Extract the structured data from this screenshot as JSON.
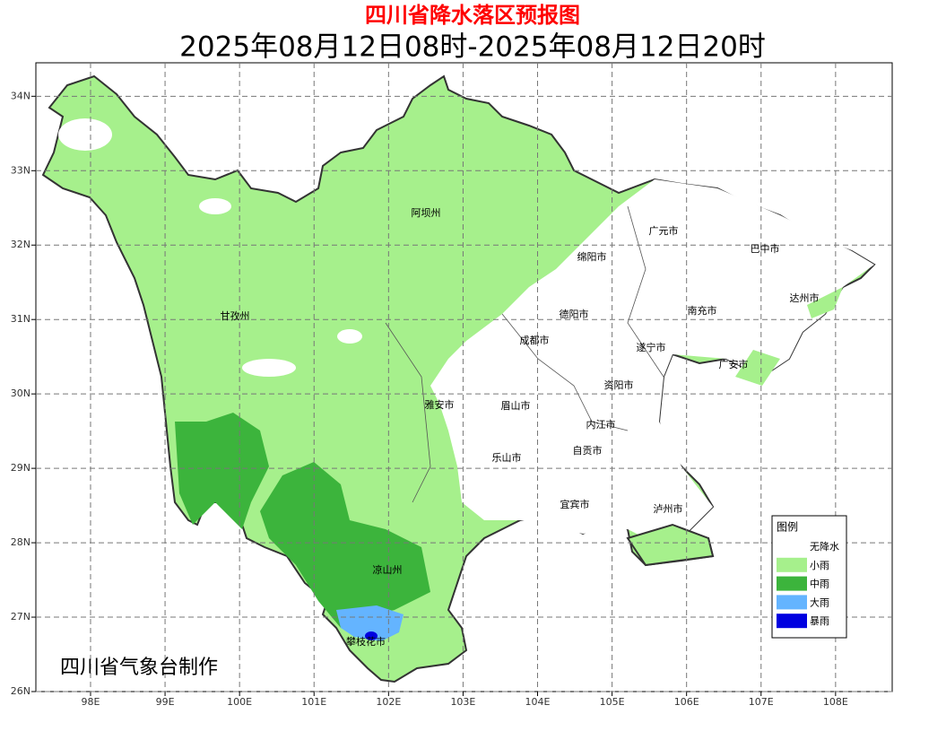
{
  "header": {
    "title": "四川省降水落区预报图",
    "subtitle": "2025年08月12日08时-2025年08月12日20时"
  },
  "map": {
    "xlim": [
      97.266,
      108.76
    ],
    "ylim": [
      26,
      34.45
    ],
    "xticks": [
      {
        "value": 98,
        "label": "98E"
      },
      {
        "value": 99,
        "label": "99E"
      },
      {
        "value": 100,
        "label": "100E"
      },
      {
        "value": 101,
        "label": "101E"
      },
      {
        "value": 102,
        "label": "102E"
      },
      {
        "value": 103,
        "label": "103E"
      },
      {
        "value": 104,
        "label": "104E"
      },
      {
        "value": 105,
        "label": "105E"
      },
      {
        "value": 106,
        "label": "106E"
      },
      {
        "value": 107,
        "label": "107E"
      },
      {
        "value": 108,
        "label": "108E"
      }
    ],
    "yticks": [
      {
        "value": 26,
        "label": "26N"
      },
      {
        "value": 27,
        "label": "27N"
      },
      {
        "value": 28,
        "label": "28N"
      },
      {
        "value": 29,
        "label": "29N"
      },
      {
        "value": 30,
        "label": "30N"
      },
      {
        "value": 31,
        "label": "31N"
      },
      {
        "value": 32,
        "label": "32N"
      },
      {
        "value": 33,
        "label": "33N"
      },
      {
        "value": 34,
        "label": "34N"
      }
    ],
    "grid": true,
    "regions": [
      "阿坝州",
      "甘孜州",
      "广元市",
      "巴中市",
      "绵阳市",
      "达州市",
      "德阳市",
      "南充市",
      "成都市",
      "遂宁市",
      "广安市",
      "资阳市",
      "雅安市",
      "眉山市",
      "内江市",
      "自贡市",
      "乐山市",
      "宜宾市",
      "泸州市",
      "凉山州",
      "攀枝花市"
    ]
  },
  "legend": {
    "title": "图例",
    "items": [
      {
        "label": "无降水",
        "color": "#ffffff"
      },
      {
        "label": "小雨",
        "color": "#a6f08c"
      },
      {
        "label": "中雨",
        "color": "#3cb43c"
      },
      {
        "label": "大雨",
        "color": "#64b4ff"
      },
      {
        "label": "暴雨",
        "color": "#0000e0"
      }
    ]
  },
  "credit": "四川省气象台制作"
}
